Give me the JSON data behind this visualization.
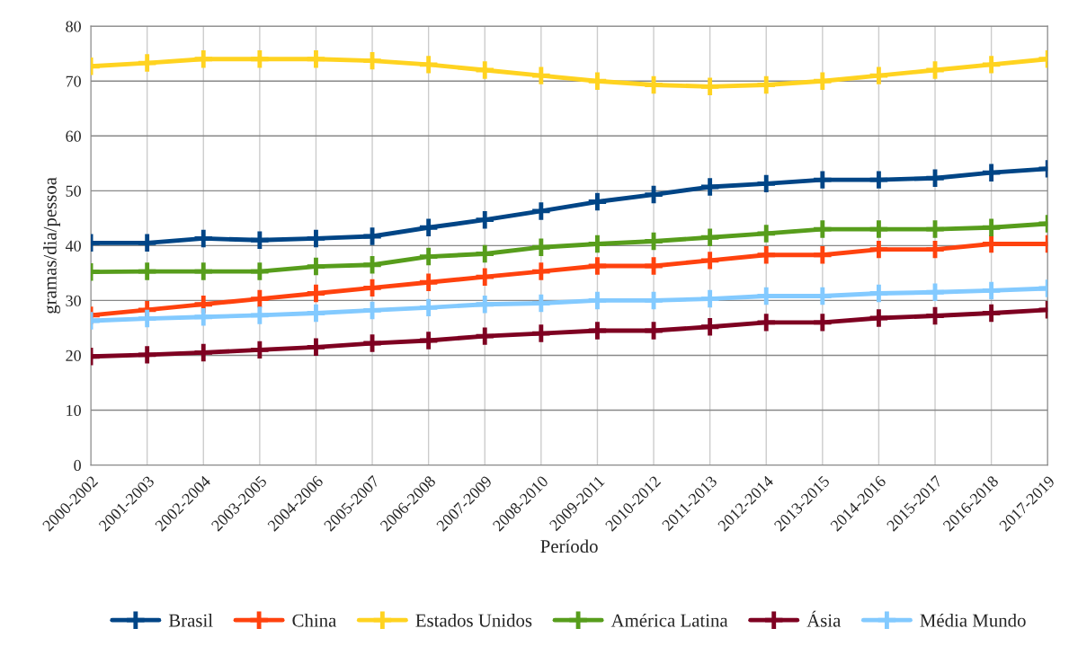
{
  "chart_data": {
    "type": "line",
    "xlabel": "Período",
    "ylabel": "gramas/dia/pessoa",
    "categories": [
      "2000-2002",
      "2001-2003",
      "2002-2004",
      "2003-2005",
      "2004-2006",
      "2005-2007",
      "2006-2008",
      "2007-2009",
      "2008-2010",
      "2009-2011",
      "2010-2012",
      "2011-2013",
      "2012-2014",
      "2013-2015",
      "2014-2016",
      "2015-2017",
      "2016-2018",
      "2017-2019"
    ],
    "ylim": [
      0,
      80
    ],
    "yticks": [
      0,
      10,
      20,
      30,
      40,
      50,
      60,
      70,
      80
    ],
    "grid": true,
    "legend": "bottom",
    "marker": "cross",
    "line_style": "solid",
    "series": [
      {
        "name": "Brasil",
        "color": "#004586",
        "values": [
          40.5,
          40.5,
          41.3,
          41,
          41.3,
          41.7,
          43.3,
          44.7,
          46.3,
          48,
          49.3,
          50.7,
          51.3,
          52,
          52,
          52.3,
          53.3,
          54
        ]
      },
      {
        "name": "China",
        "color": "#ff420e",
        "values": [
          27.3,
          28.3,
          29.3,
          30.3,
          31.3,
          32.3,
          33.3,
          34.3,
          35.3,
          36.3,
          36.3,
          37.3,
          38.3,
          38.3,
          39.3,
          39.3,
          40.3,
          40.3
        ]
      },
      {
        "name": "Estados Unidos",
        "color": "#ffd320",
        "values": [
          72.7,
          73.3,
          74,
          74,
          74,
          73.7,
          73,
          72,
          71,
          70,
          69.3,
          69,
          69.3,
          70,
          71,
          72,
          73,
          74
        ]
      },
      {
        "name": "América Latina",
        "color": "#579d1c",
        "values": [
          35.2,
          35.3,
          35.3,
          35.3,
          36.2,
          36.5,
          38,
          38.5,
          39.7,
          40.3,
          40.8,
          41.5,
          42.2,
          43,
          43,
          43,
          43.3,
          44
        ]
      },
      {
        "name": "Ásia",
        "color": "#7e0021",
        "values": [
          19.8,
          20.1,
          20.5,
          21,
          21.5,
          22.2,
          22.7,
          23.5,
          24,
          24.5,
          24.5,
          25.2,
          26,
          26,
          26.8,
          27.2,
          27.7,
          28.3
        ]
      },
      {
        "name": "Média Mundo",
        "color": "#83caff",
        "values": [
          26.3,
          26.7,
          27,
          27.3,
          27.7,
          28.2,
          28.7,
          29.3,
          29.5,
          30,
          30,
          30.3,
          30.8,
          30.8,
          31.3,
          31.5,
          31.8,
          32.2
        ]
      }
    ]
  }
}
